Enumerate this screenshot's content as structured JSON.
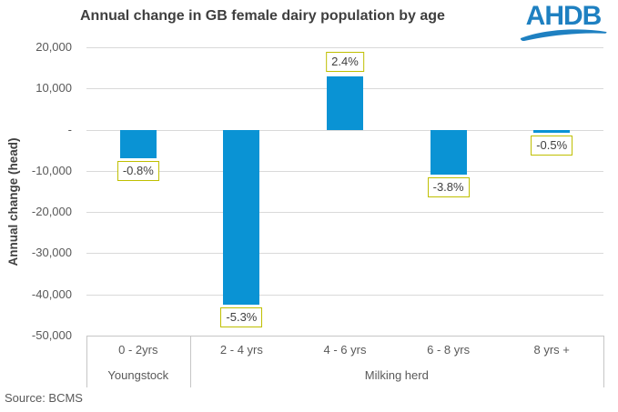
{
  "title": "Annual change in GB female dairy population by age",
  "logo": {
    "text": "AHDB",
    "color": "#1e80c1"
  },
  "source": "Source: BCMS",
  "chart_data": {
    "type": "bar",
    "title": "Annual change in GB female dairy population by age",
    "xlabel": "",
    "ylabel": "Annual change (head)",
    "categories": [
      "0 - 2yrs",
      "2 - 4 yrs",
      "4 - 6 yrs",
      "6 - 8 yrs",
      "8 yrs +"
    ],
    "category_groups": [
      {
        "label": "Youngstock",
        "start": 0,
        "end": 1
      },
      {
        "label": "Milking herd",
        "start": 1,
        "end": 5
      }
    ],
    "values": [
      -7000,
      -42500,
      13000,
      -11000,
      -800
    ],
    "data_labels": [
      "-0.8%",
      "-5.3%",
      "2.4%",
      "-3.8%",
      "-0.5%"
    ],
    "ylim": [
      -50000,
      20000
    ],
    "yticks": [
      {
        "v": 20000,
        "label": "20,000"
      },
      {
        "v": 10000,
        "label": "10,000"
      },
      {
        "v": 0,
        "label": "-"
      },
      {
        "v": -10000,
        "label": "-10,000"
      },
      {
        "v": -20000,
        "label": "-20,000"
      },
      {
        "v": -30000,
        "label": "-30,000"
      },
      {
        "v": -40000,
        "label": "-40,000"
      },
      {
        "v": -50000,
        "label": "-50,000"
      }
    ],
    "grid": true,
    "legend": "none",
    "bar_color": "#0a93d4",
    "label_box_border_color": "#bfbf00",
    "gridline_color": "#d9d9d9"
  }
}
